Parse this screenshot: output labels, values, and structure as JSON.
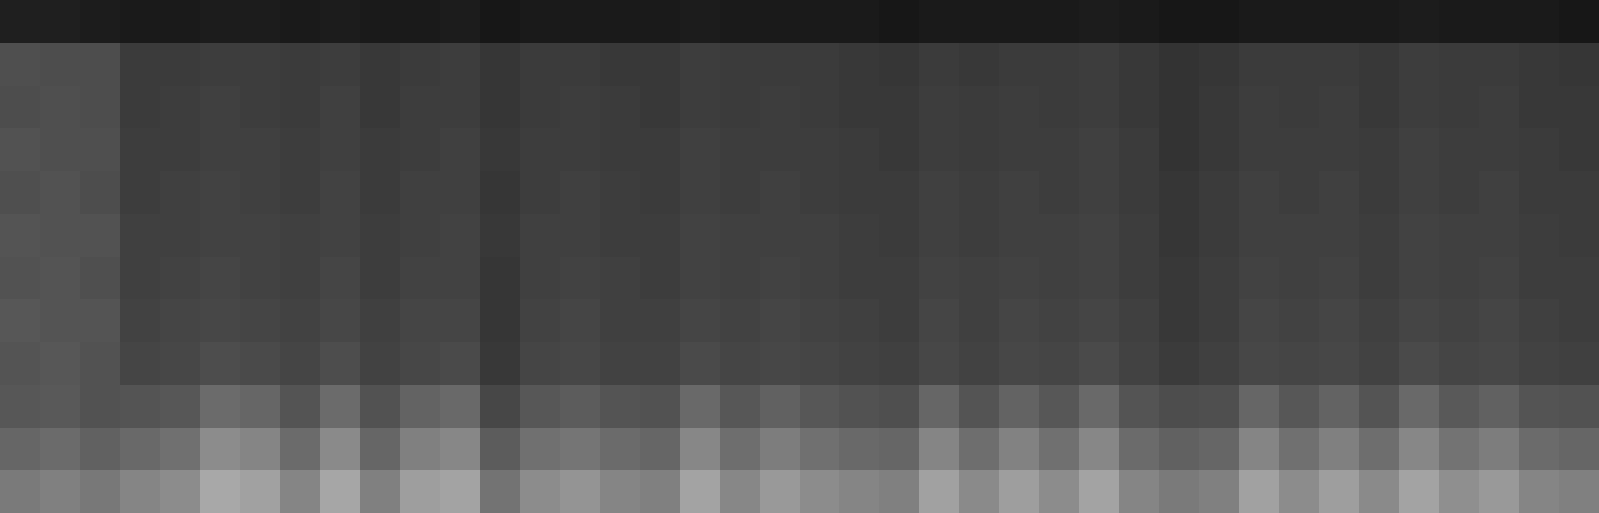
{
  "chart_data": {
    "type": "heatmap",
    "tick_labels": false,
    "zlim": [
      0,
      100
    ],
    "cells": [
      [
        48,
        50,
        47,
        52,
        55,
        66,
        63,
        52,
        65,
        50,
        62,
        64,
        45,
        55,
        58,
        52,
        50,
        64,
        53,
        60,
        55,
        52,
        50,
        63,
        54,
        62,
        55,
        64,
        52,
        48,
        50,
        63,
        55,
        62,
        54,
        64,
        56,
        60,
        52,
        50
      ],
      [
        40,
        42,
        38,
        41,
        44,
        55,
        52,
        42,
        54,
        40,
        50,
        53,
        36,
        44,
        46,
        42,
        40,
        53,
        43,
        49,
        44,
        41,
        40,
        52,
        43,
        51,
        44,
        53,
        42,
        38,
        40,
        52,
        44,
        50,
        43,
        53,
        45,
        49,
        42,
        40
      ],
      [
        34,
        35,
        32,
        33,
        34,
        42,
        40,
        33,
        42,
        32,
        39,
        41,
        28,
        34,
        36,
        33,
        32,
        41,
        34,
        38,
        34,
        32,
        31,
        40,
        33,
        39,
        34,
        41,
        33,
        30,
        31,
        40,
        34,
        39,
        33,
        41,
        35,
        38,
        33,
        32
      ],
      [
        33,
        34,
        32,
        27,
        28,
        30,
        29,
        27,
        30,
        26,
        28,
        29,
        22,
        27,
        28,
        26,
        26,
        29,
        27,
        28,
        27,
        26,
        25,
        28,
        26,
        28,
        27,
        29,
        26,
        23,
        25,
        28,
        27,
        28,
        26,
        29,
        27,
        28,
        26,
        25
      ],
      [
        34,
        33,
        33,
        26,
        27,
        28,
        27,
        26,
        28,
        25,
        27,
        27,
        21,
        26,
        27,
        25,
        25,
        27,
        26,
        27,
        26,
        25,
        24,
        27,
        25,
        27,
        26,
        27,
        25,
        22,
        24,
        27,
        26,
        27,
        25,
        27,
        26,
        27,
        25,
        24
      ],
      [
        32,
        33,
        31,
        25,
        26,
        27,
        26,
        25,
        27,
        24,
        26,
        26,
        21,
        25,
        26,
        25,
        24,
        26,
        25,
        26,
        25,
        24,
        24,
        26,
        25,
        26,
        25,
        26,
        24,
        22,
        24,
        26,
        25,
        26,
        24,
        26,
        25,
        26,
        24,
        24
      ],
      [
        33,
        32,
        32,
        25,
        25,
        26,
        26,
        25,
        26,
        24,
        25,
        26,
        22,
        25,
        25,
        24,
        24,
        26,
        25,
        25,
        25,
        24,
        23,
        25,
        24,
        25,
        25,
        26,
        24,
        21,
        23,
        25,
        25,
        25,
        24,
        26,
        25,
        25,
        24,
        23
      ],
      [
        31,
        32,
        30,
        24,
        25,
        26,
        25,
        24,
        26,
        23,
        25,
        25,
        21,
        24,
        25,
        24,
        23,
        25,
        24,
        25,
        24,
        23,
        23,
        25,
        24,
        25,
        24,
        25,
        23,
        21,
        23,
        25,
        24,
        25,
        23,
        25,
        24,
        25,
        23,
        23
      ],
      [
        32,
        31,
        31,
        24,
        24,
        25,
        25,
        24,
        25,
        23,
        24,
        25,
        22,
        24,
        24,
        23,
        23,
        25,
        24,
        24,
        24,
        23,
        22,
        24,
        23,
        24,
        24,
        25,
        23,
        20,
        22,
        24,
        24,
        24,
        23,
        25,
        24,
        24,
        23,
        22
      ],
      [
        30,
        31,
        30,
        23,
        24,
        25,
        24,
        23,
        25,
        22,
        24,
        24,
        21,
        23,
        24,
        23,
        22,
        24,
        23,
        24,
        23,
        22,
        22,
        24,
        23,
        24,
        23,
        24,
        22,
        20,
        22,
        24,
        23,
        24,
        22,
        24,
        23,
        24,
        22,
        22
      ],
      [
        31,
        30,
        30,
        23,
        23,
        24,
        24,
        23,
        24,
        22,
        23,
        24,
        21,
        23,
        23,
        22,
        22,
        24,
        23,
        23,
        23,
        22,
        21,
        23,
        22,
        23,
        23,
        24,
        22,
        20,
        21,
        23,
        23,
        23,
        22,
        24,
        23,
        23,
        22,
        21
      ],
      [
        12,
        12,
        11,
        10,
        10,
        11,
        11,
        10,
        11,
        10,
        10,
        11,
        9,
        10,
        10,
        10,
        10,
        11,
        10,
        10,
        10,
        10,
        9,
        10,
        10,
        10,
        10,
        11,
        10,
        9,
        9,
        10,
        10,
        10,
        10,
        11,
        10,
        10,
        10,
        9
      ]
    ]
  }
}
